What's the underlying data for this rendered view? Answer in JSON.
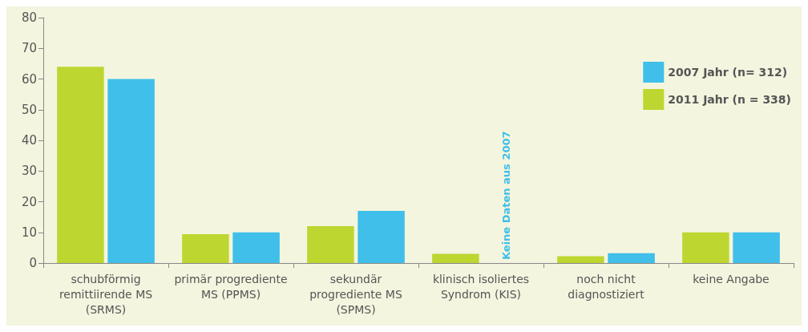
{
  "chart_data": {
    "type": "bar",
    "categories": [
      "schubförmig\nremittiirende MS\n(SRMS)",
      "primär progrediente\nMS (PPMS)",
      "sekundär\nprogrediente MS\n(SPMS)",
      "klinisch isoliertes\nSyndrom (KIS)",
      "noch nicht\ndiagnostiziert",
      "keine Angabe"
    ],
    "series": [
      {
        "name": "2011 Jahr (n = 338)",
        "color": "#bed630",
        "values": [
          64,
          9.4,
          12,
          3,
          2.2,
          10
        ]
      },
      {
        "name": "2007 Jahr (n= 312)",
        "color": "#3fbfe9",
        "values": [
          60,
          10,
          17,
          null,
          3.2,
          10
        ]
      }
    ],
    "ylim": [
      0,
      80
    ],
    "yticks": [
      0,
      10,
      20,
      30,
      40,
      50,
      60,
      70,
      80
    ],
    "grid": false,
    "legend": "top right",
    "annotations": [
      "Keine Daten aus 2007"
    ]
  }
}
